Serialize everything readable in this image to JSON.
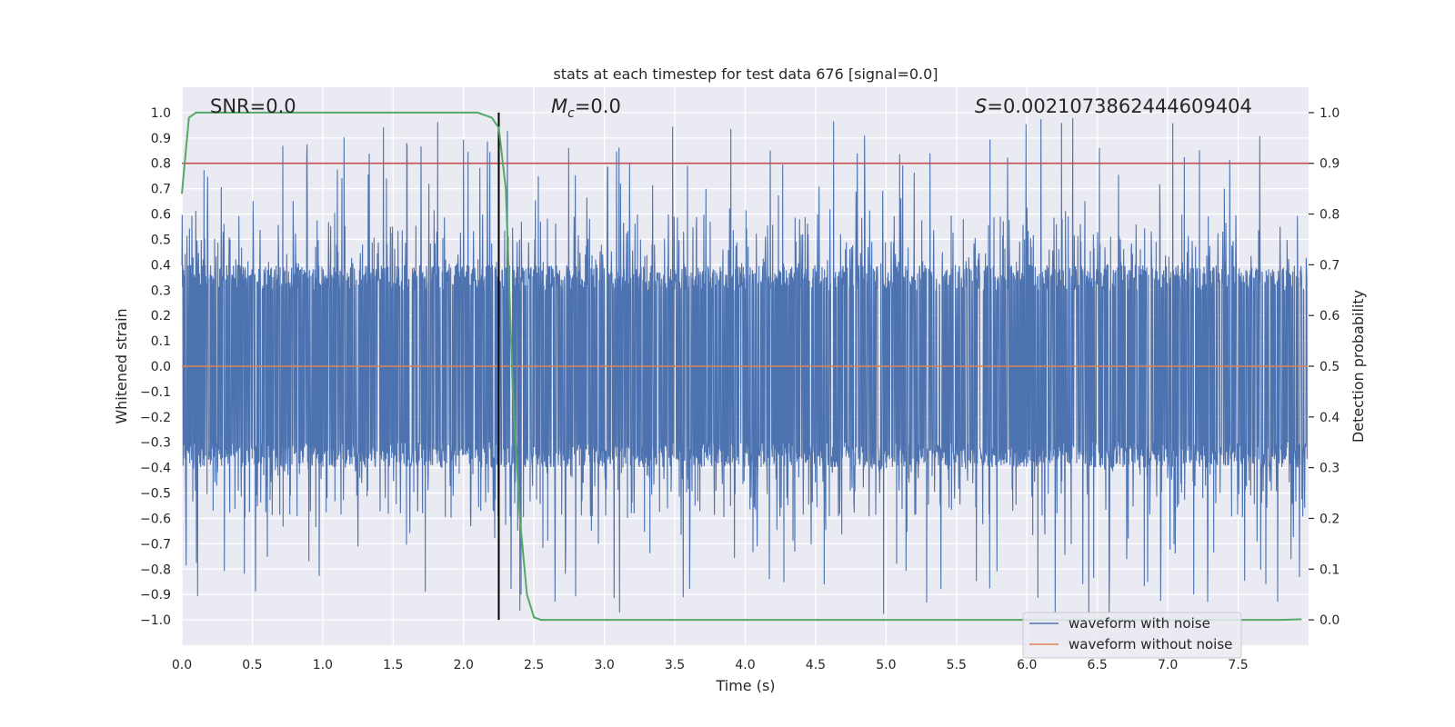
{
  "chart_data": {
    "type": "line",
    "title": "stats at each timestep for test data 676 [signal=0.0]",
    "xlabel": "Time (s)",
    "ylabel_left": "Whitened strain",
    "ylabel_right": "Detection probability",
    "xlim": [
      0.0,
      8.0
    ],
    "ylim_left": [
      -1.1,
      1.1
    ],
    "ylim_right": [
      -0.05,
      1.05
    ],
    "x_ticks": [
      0.0,
      0.5,
      1.0,
      1.5,
      2.0,
      2.5,
      3.0,
      3.5,
      4.0,
      4.5,
      5.0,
      5.5,
      6.0,
      6.5,
      7.0,
      7.5
    ],
    "x_tick_labels": [
      "0.0",
      "0.5",
      "1.0",
      "1.5",
      "2.0",
      "2.5",
      "3.0",
      "3.5",
      "4.0",
      "4.5",
      "5.0",
      "5.5",
      "6.0",
      "6.5",
      "7.0",
      "7.5"
    ],
    "y_left_ticks": [
      -1.0,
      -0.9,
      -0.8,
      -0.7,
      -0.6,
      -0.5,
      -0.4,
      -0.3,
      -0.2,
      -0.1,
      0.0,
      0.1,
      0.2,
      0.3,
      0.4,
      0.5,
      0.6,
      0.7,
      0.8,
      0.9,
      1.0
    ],
    "y_left_tick_labels": [
      "−1.0",
      "−0.9",
      "−0.8",
      "−0.7",
      "−0.6",
      "−0.5",
      "−0.4",
      "−0.3",
      "−0.2",
      "−0.1",
      "0.0",
      "0.1",
      "0.2",
      "0.3",
      "0.4",
      "0.5",
      "0.6",
      "0.7",
      "0.8",
      "0.9",
      "1.0"
    ],
    "y_right_ticks": [
      0.0,
      0.1,
      0.2,
      0.3,
      0.4,
      0.5,
      0.6,
      0.7,
      0.8,
      0.9,
      1.0
    ],
    "y_right_tick_labels": [
      "0.0",
      "0.1",
      "0.2",
      "0.3",
      "0.4",
      "0.5",
      "0.6",
      "0.7",
      "0.8",
      "0.9",
      "1.0"
    ],
    "grid": true,
    "annotations": {
      "snr": "SNR=0.0",
      "mc_symbol": "M",
      "mc_subscript": "c",
      "mc_value": "=0.0",
      "s_symbol": "S",
      "s_value": "=0.0021073862444609404"
    },
    "legend": {
      "placement": "lower-right",
      "entries": [
        {
          "label": "waveform with noise",
          "color": "#4c72b0"
        },
        {
          "label": "waveform without noise",
          "color": "#dd8452"
        }
      ]
    },
    "series": [
      {
        "name": "waveform with noise",
        "axis": "left",
        "color": "#4c72b0",
        "sample_rate_hz": 2048,
        "typical_abs_max": 0.4,
        "peak_max": 0.98,
        "peak_min": -0.98
      },
      {
        "name": "waveform without noise",
        "axis": "left",
        "color": "#dd8452",
        "x": [
          0.0,
          7.99
        ],
        "y": [
          0.0,
          0.0
        ]
      },
      {
        "axis": "right",
        "color": "#55a868",
        "x": [
          0.0,
          0.05,
          0.1,
          0.15,
          0.2,
          0.5,
          1.0,
          1.5,
          2.0,
          2.1,
          2.2,
          2.25,
          2.3,
          2.35,
          2.4,
          2.45,
          2.5,
          2.55,
          2.6,
          3.0,
          4.0,
          5.0,
          6.0,
          7.0,
          7.5,
          7.8,
          7.95
        ],
        "y": [
          0.84,
          0.99,
          1.0,
          1.0,
          1.0,
          1.0,
          1.0,
          1.0,
          1.0,
          1.0,
          0.99,
          0.97,
          0.85,
          0.45,
          0.2,
          0.05,
          0.005,
          0.0,
          0.0,
          0.0,
          0.0,
          0.0,
          0.0,
          0.0,
          0.0,
          0.0,
          0.001
        ]
      }
    ],
    "threshold_line": {
      "axis": "right",
      "value": 0.9,
      "color": "#c44e52"
    },
    "vertical_line": {
      "x": 2.25,
      "color": "#000000"
    }
  }
}
